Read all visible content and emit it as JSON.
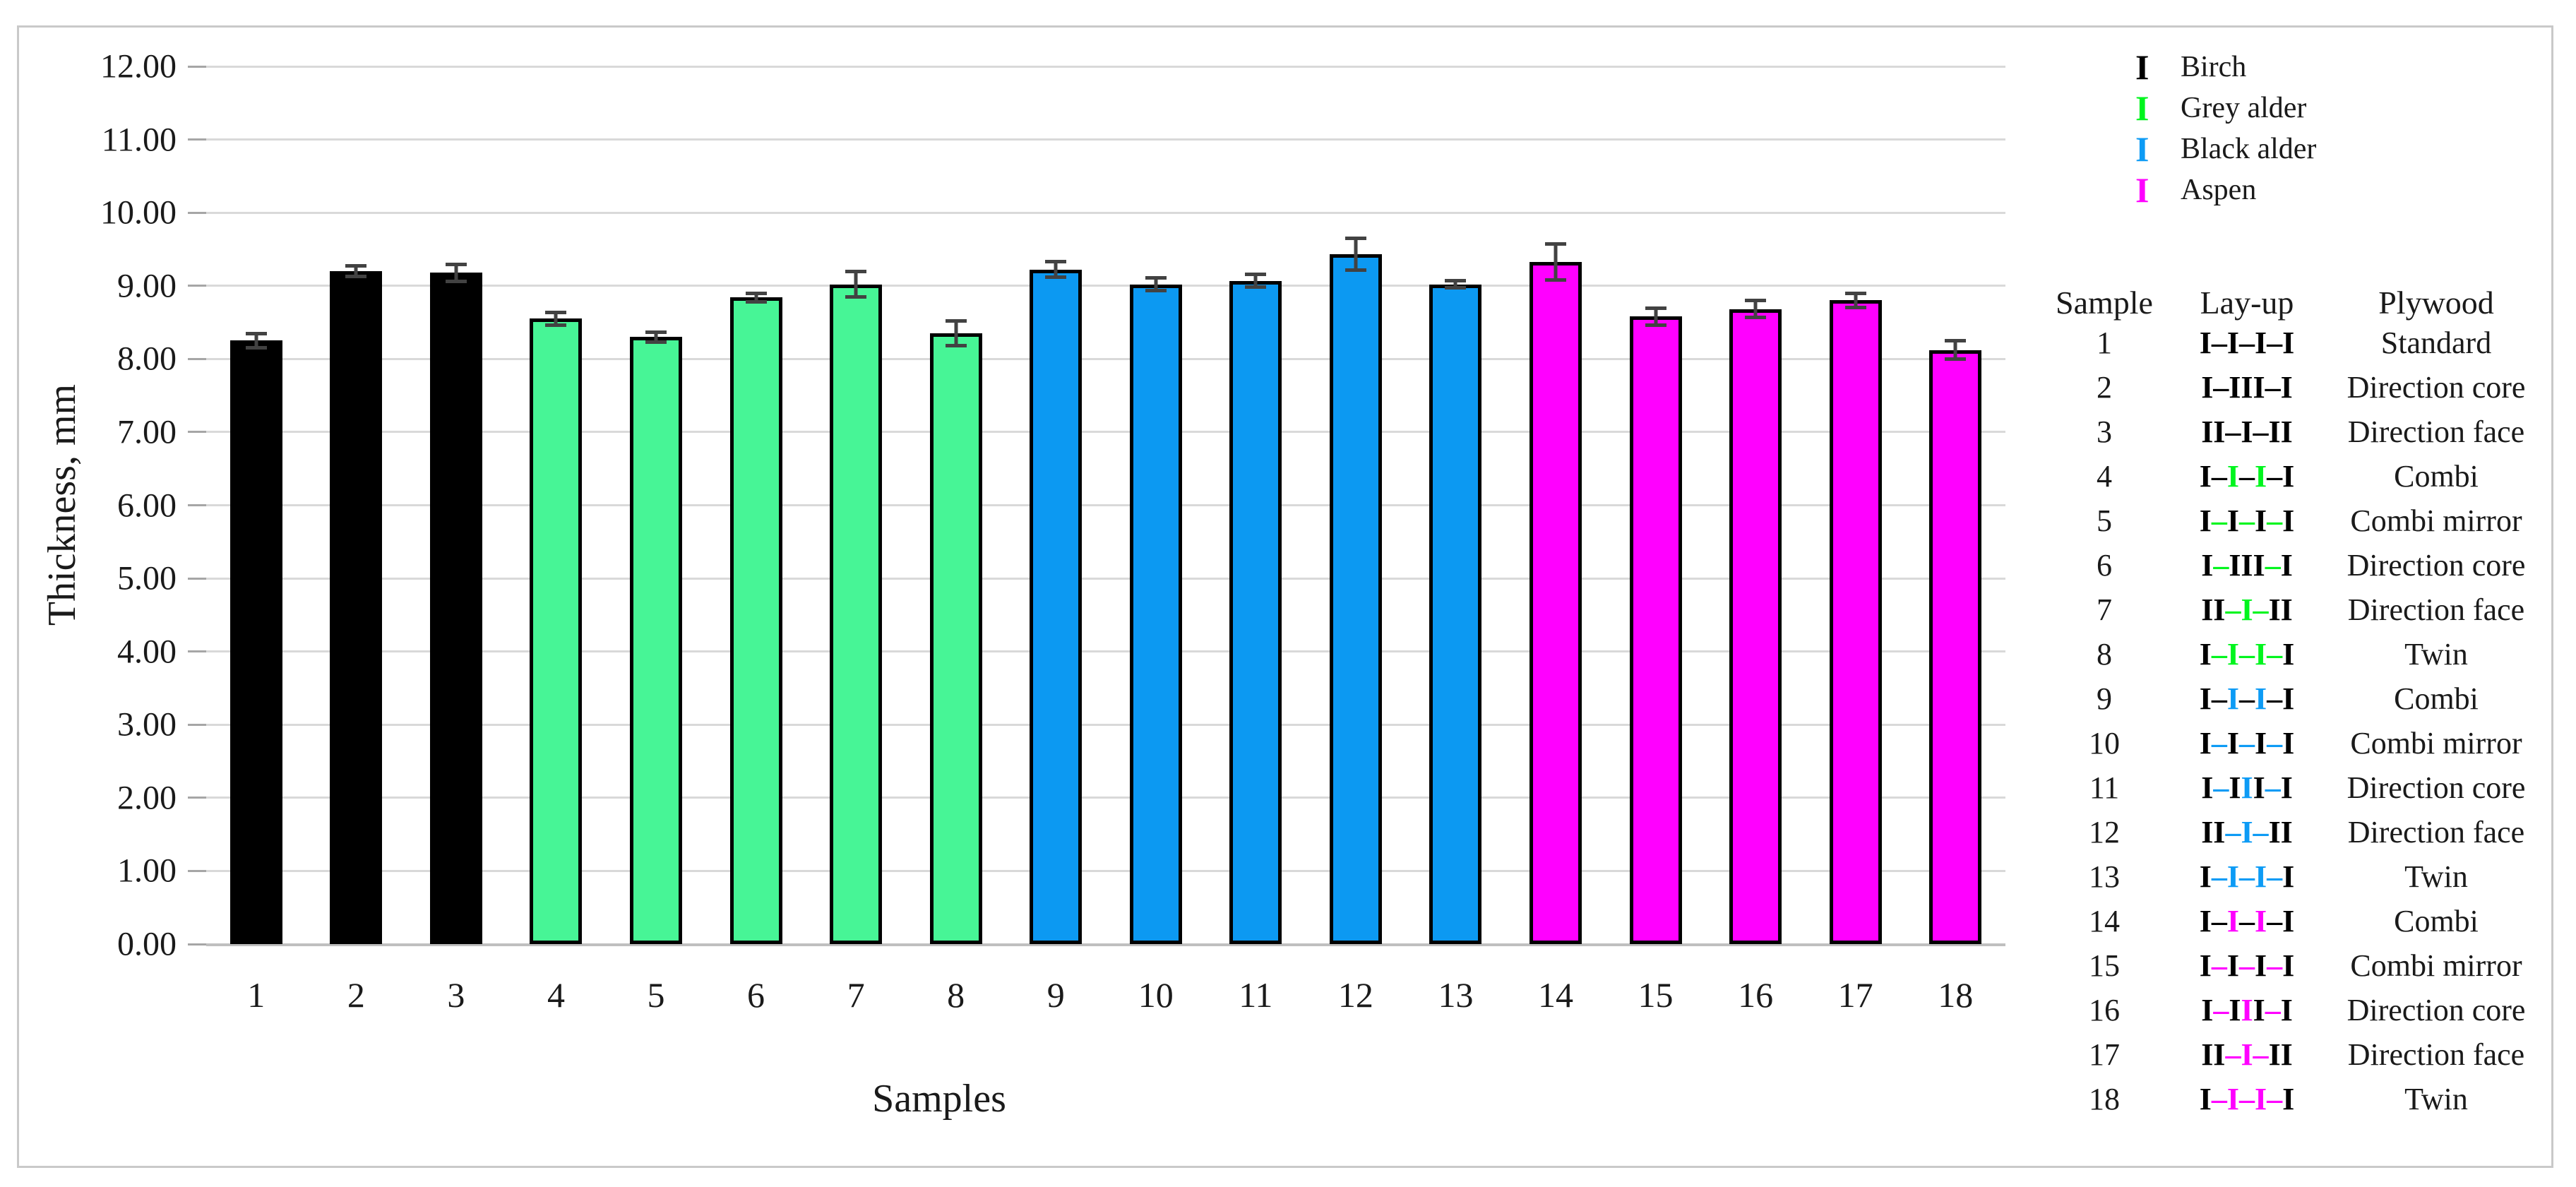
{
  "chart_data": {
    "type": "bar",
    "title": "",
    "xlabel": "Samples",
    "ylabel": "Thickness, mm",
    "ylim": [
      0,
      12
    ],
    "ytick_labels": [
      "0.00",
      "1.00",
      "2.00",
      "3.00",
      "4.00",
      "5.00",
      "6.00",
      "7.00",
      "8.00",
      "9.00",
      "10.00",
      "11.00",
      "12.00"
    ],
    "grid": true,
    "legend_position": "top-right",
    "categories": [
      "1",
      "2",
      "3",
      "4",
      "5",
      "6",
      "7",
      "8",
      "9",
      "10",
      "11",
      "12",
      "13",
      "14",
      "15",
      "16",
      "17",
      "18"
    ],
    "series": [
      {
        "name": "Thickness, mm",
        "values": [
          8.25,
          9.2,
          9.18,
          8.55,
          8.3,
          8.84,
          9.02,
          8.35,
          9.22,
          9.02,
          9.07,
          9.43,
          9.02,
          9.33,
          8.58,
          8.68,
          8.8,
          8.12
        ],
        "errors": [
          0.12,
          0.1,
          0.14,
          0.11,
          0.09,
          0.08,
          0.2,
          0.19,
          0.13,
          0.11,
          0.11,
          0.24,
          0.07,
          0.27,
          0.14,
          0.14,
          0.12,
          0.15
        ],
        "bar_species": [
          "Birch",
          "Birch",
          "Birch",
          "Grey alder",
          "Grey alder",
          "Grey alder",
          "Grey alder",
          "Grey alder",
          "Black alder",
          "Black alder",
          "Black alder",
          "Black alder",
          "Black alder",
          "Aspen",
          "Aspen",
          "Aspen",
          "Aspen",
          "Aspen"
        ],
        "group_index": [
          0,
          0,
          0,
          1,
          1,
          1,
          1,
          1,
          2,
          2,
          2,
          2,
          2,
          3,
          3,
          3,
          3,
          3
        ]
      }
    ]
  },
  "colors": {
    "bar_fills": [
      "#000000",
      "#47F596",
      "#0C99F2",
      "#FF00FF"
    ],
    "bar_border": "#000000",
    "error_bar": "#424242",
    "gridline": "#d9d9d9",
    "axis_line": "#bfbfbf",
    "layup": {
      "k": "#000000",
      "g": "#00F51E",
      "b": "#0D9BF5",
      "m": "#FF00FF"
    }
  },
  "legend": {
    "items": [
      {
        "label": "Birch",
        "color": "#000000"
      },
      {
        "label": "Grey alder",
        "color": "#00F51E"
      },
      {
        "label": "Black alder",
        "color": "#0D9BF5"
      },
      {
        "label": "Aspen",
        "color": "#FF00FF"
      }
    ]
  },
  "table": {
    "headers": [
      "Sample",
      "Lay-up",
      "Plywood"
    ],
    "rows": [
      {
        "sample": "1",
        "layup": [
          [
            "I–I–I–I",
            "k"
          ]
        ],
        "plywood": "Standard"
      },
      {
        "sample": "2",
        "layup": [
          [
            "I–III–I",
            "k"
          ]
        ],
        "plywood": "Direction core"
      },
      {
        "sample": "3",
        "layup": [
          [
            "II–I–II",
            "k"
          ]
        ],
        "plywood": "Direction face"
      },
      {
        "sample": "4",
        "layup": [
          [
            "I–",
            "k"
          ],
          [
            "I",
            "g"
          ],
          [
            "–",
            "k"
          ],
          [
            "I",
            "g"
          ],
          [
            "–I",
            "k"
          ]
        ],
        "plywood": "Combi"
      },
      {
        "sample": "5",
        "layup": [
          [
            "I",
            "k"
          ],
          [
            "–",
            "g"
          ],
          [
            "I",
            "k"
          ],
          [
            "–",
            "g"
          ],
          [
            "I",
            "k"
          ],
          [
            "–",
            "g"
          ],
          [
            "I",
            "k"
          ]
        ],
        "plywood": "Combi mirror"
      },
      {
        "sample": "6",
        "layup": [
          [
            "I",
            "k"
          ],
          [
            "–",
            "g"
          ],
          [
            "III",
            "k"
          ],
          [
            "–",
            "g"
          ],
          [
            "I",
            "k"
          ]
        ],
        "plywood": "Direction core"
      },
      {
        "sample": "7",
        "layup": [
          [
            "II",
            "k"
          ],
          [
            "–I–",
            "g"
          ],
          [
            "II",
            "k"
          ]
        ],
        "plywood": "Direction face"
      },
      {
        "sample": "8",
        "layup": [
          [
            "I",
            "k"
          ],
          [
            "–I–I–",
            "g"
          ],
          [
            "I",
            "k"
          ]
        ],
        "plywood": "Twin"
      },
      {
        "sample": "9",
        "layup": [
          [
            "I–",
            "k"
          ],
          [
            "I",
            "b"
          ],
          [
            "–",
            "k"
          ],
          [
            "I",
            "b"
          ],
          [
            "–I",
            "k"
          ]
        ],
        "plywood": "Combi"
      },
      {
        "sample": "10",
        "layup": [
          [
            "I",
            "k"
          ],
          [
            "–",
            "b"
          ],
          [
            "I",
            "k"
          ],
          [
            "–",
            "b"
          ],
          [
            "I",
            "k"
          ],
          [
            "–",
            "b"
          ],
          [
            "I",
            "k"
          ]
        ],
        "plywood": "Combi mirror"
      },
      {
        "sample": "11",
        "layup": [
          [
            "I",
            "k"
          ],
          [
            "–",
            "b"
          ],
          [
            "I",
            "k"
          ],
          [
            "I",
            "b"
          ],
          [
            "I",
            "k"
          ],
          [
            "–",
            "b"
          ],
          [
            "I",
            "k"
          ]
        ],
        "plywood": "Direction core"
      },
      {
        "sample": "12",
        "layup": [
          [
            "II",
            "k"
          ],
          [
            "–I–",
            "b"
          ],
          [
            "II",
            "k"
          ]
        ],
        "plywood": "Direction face"
      },
      {
        "sample": "13",
        "layup": [
          [
            "I",
            "k"
          ],
          [
            "–I–I–",
            "b"
          ],
          [
            "I",
            "k"
          ]
        ],
        "plywood": "Twin"
      },
      {
        "sample": "14",
        "layup": [
          [
            "I–",
            "k"
          ],
          [
            "I",
            "m"
          ],
          [
            "–",
            "k"
          ],
          [
            "I",
            "m"
          ],
          [
            "–I",
            "k"
          ]
        ],
        "plywood": "Combi"
      },
      {
        "sample": "15",
        "layup": [
          [
            "I",
            "k"
          ],
          [
            "–",
            "m"
          ],
          [
            "I",
            "k"
          ],
          [
            "–",
            "m"
          ],
          [
            "I",
            "k"
          ],
          [
            "–",
            "m"
          ],
          [
            "I",
            "k"
          ]
        ],
        "plywood": "Combi mirror"
      },
      {
        "sample": "16",
        "layup": [
          [
            "I",
            "k"
          ],
          [
            "–",
            "m"
          ],
          [
            "I",
            "k"
          ],
          [
            "I",
            "m"
          ],
          [
            "I",
            "k"
          ],
          [
            "–",
            "m"
          ],
          [
            "I",
            "k"
          ]
        ],
        "plywood": "Direction core"
      },
      {
        "sample": "17",
        "layup": [
          [
            "II",
            "k"
          ],
          [
            "–I–",
            "m"
          ],
          [
            "II",
            "k"
          ]
        ],
        "plywood": "Direction face"
      },
      {
        "sample": "18",
        "layup": [
          [
            "I",
            "k"
          ],
          [
            "–I–I–",
            "m"
          ],
          [
            "I",
            "k"
          ]
        ],
        "plywood": "Twin"
      }
    ]
  }
}
